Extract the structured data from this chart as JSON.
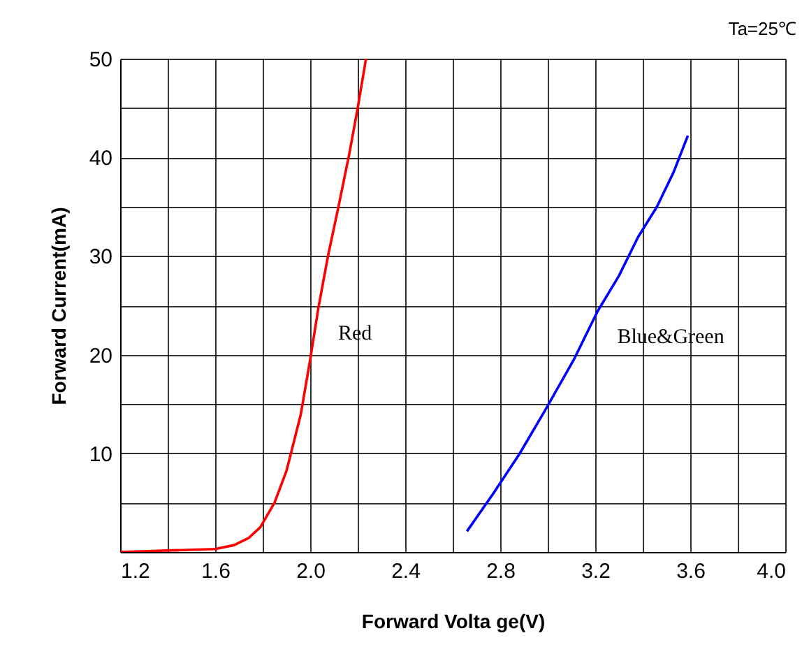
{
  "chart_data": {
    "type": "line",
    "xlabel": "Forward Volta ge(V)",
    "ylabel": "Forward Current(mA)",
    "xlim": [
      1.2,
      4.0
    ],
    "ylim": [
      0,
      50
    ],
    "xticks": [
      1.2,
      {
        "value": 1.4,
        "label": null
      },
      1.6,
      {
        "value": 1.8,
        "label": null
      },
      {
        "value": 2.0,
        "label": "2.0"
      },
      {
        "value": 2.2,
        "label": null
      },
      2.4,
      {
        "value": 2.6,
        "label": null
      },
      2.8,
      {
        "value": 3.0,
        "label": null
      },
      3.2,
      {
        "value": 3.4,
        "label": null
      },
      3.6,
      {
        "value": 3.8,
        "label": null
      },
      {
        "value": 4.0,
        "label": "4.0"
      }
    ],
    "yticks": [
      {
        "value": 0,
        "label": null
      },
      {
        "value": 5,
        "label": null
      },
      10,
      {
        "value": 15,
        "label": null
      },
      20,
      {
        "value": 25,
        "label": null
      },
      30,
      {
        "value": 35,
        "label": null
      },
      40,
      {
        "value": 45,
        "label": null
      },
      50
    ],
    "grid": true,
    "line_style": "solid",
    "series": [
      {
        "name": "Red",
        "color": "#ff0000",
        "x": [
          1.2,
          1.6,
          1.68,
          1.74,
          1.79,
          1.85,
          1.9,
          1.96,
          2.0,
          2.035,
          2.075,
          2.12,
          2.165,
          2.2,
          2.235
        ],
        "values": [
          0,
          0.3,
          0.7,
          1.4,
          2.5,
          5,
          8.2,
          13.9,
          19.5,
          24.8,
          30,
          35.1,
          40.4,
          45,
          50
        ]
      },
      {
        "name": "Blue&Green",
        "color": "#0000ff",
        "x": [
          2.66,
          2.77,
          2.88,
          2.99,
          3.11,
          3.21,
          3.3,
          3.38,
          3.46,
          3.53,
          3.59
        ],
        "values": [
          2.1,
          5.9,
          9.9,
          14.4,
          19.5,
          24.4,
          28,
          31.9,
          35,
          38.5,
          42.2
        ]
      }
    ],
    "annotations": [
      "Ta=25℃"
    ]
  }
}
